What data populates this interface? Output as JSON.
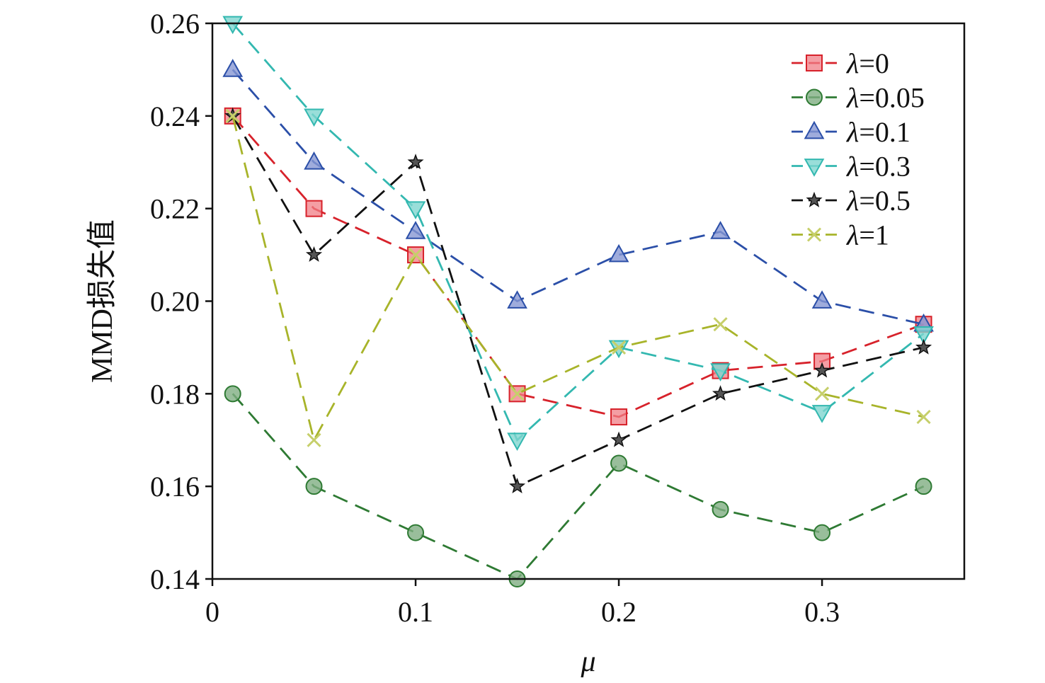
{
  "chart_data": {
    "type": "line",
    "xlabel": "μ",
    "ylabel": "MMD损失值",
    "xlim": [
      0,
      0.37
    ],
    "ylim": [
      0.14,
      0.26
    ],
    "xticks": [
      "0",
      "0.1",
      "0.2",
      "0.3"
    ],
    "xtick_values": [
      0,
      0.1,
      0.2,
      0.3
    ],
    "yticks": [
      "0.14",
      "0.16",
      "0.18",
      "0.20",
      "0.22",
      "0.24",
      "0.26"
    ],
    "ytick_values": [
      0.14,
      0.16,
      0.18,
      0.2,
      0.22,
      0.24,
      0.26
    ],
    "grid": false,
    "legend_position": "top-right",
    "x": [
      0.01,
      0.05,
      0.1,
      0.15,
      0.2,
      0.25,
      0.3,
      0.35
    ],
    "series": [
      {
        "name": "λ=0",
        "symbol": "λ",
        "suffix": "=0",
        "marker": "square",
        "color": "#d7222b",
        "fill": "#f07d85",
        "values": [
          0.24,
          0.22,
          0.21,
          0.18,
          0.175,
          0.185,
          0.187,
          0.195
        ]
      },
      {
        "name": "λ=0.05",
        "symbol": "λ",
        "suffix": "=0.05",
        "marker": "circle",
        "color": "#2e7a33",
        "fill": "#7fae82",
        "values": [
          0.18,
          0.16,
          0.15,
          0.14,
          0.165,
          0.155,
          0.15,
          0.16
        ]
      },
      {
        "name": "λ=0.1",
        "symbol": "λ",
        "suffix": "=0.1",
        "marker": "triangle-up",
        "color": "#2b4fa8",
        "fill": "#8797d3",
        "values": [
          0.25,
          0.23,
          0.215,
          0.2,
          0.21,
          0.215,
          0.2,
          0.195
        ]
      },
      {
        "name": "λ=0.3",
        "symbol": "λ",
        "suffix": "=0.3",
        "marker": "triangle-down",
        "color": "#33b8b0",
        "fill": "#7fd6cf",
        "values": [
          0.26,
          0.24,
          0.22,
          0.17,
          0.19,
          0.185,
          0.176,
          0.193
        ]
      },
      {
        "name": "λ=0.5",
        "symbol": "λ",
        "suffix": "=0.5",
        "marker": "star",
        "color": "#111111",
        "fill": "#555555",
        "values": [
          0.24,
          0.21,
          0.23,
          0.16,
          0.17,
          0.18,
          0.185,
          0.19
        ]
      },
      {
        "name": "λ=1",
        "symbol": "λ",
        "suffix": "=1",
        "marker": "x",
        "color": "#a8b42a",
        "fill": "#c6cf6a",
        "values": [
          0.24,
          0.17,
          0.21,
          0.18,
          0.19,
          0.195,
          0.18,
          0.175
        ]
      }
    ]
  }
}
